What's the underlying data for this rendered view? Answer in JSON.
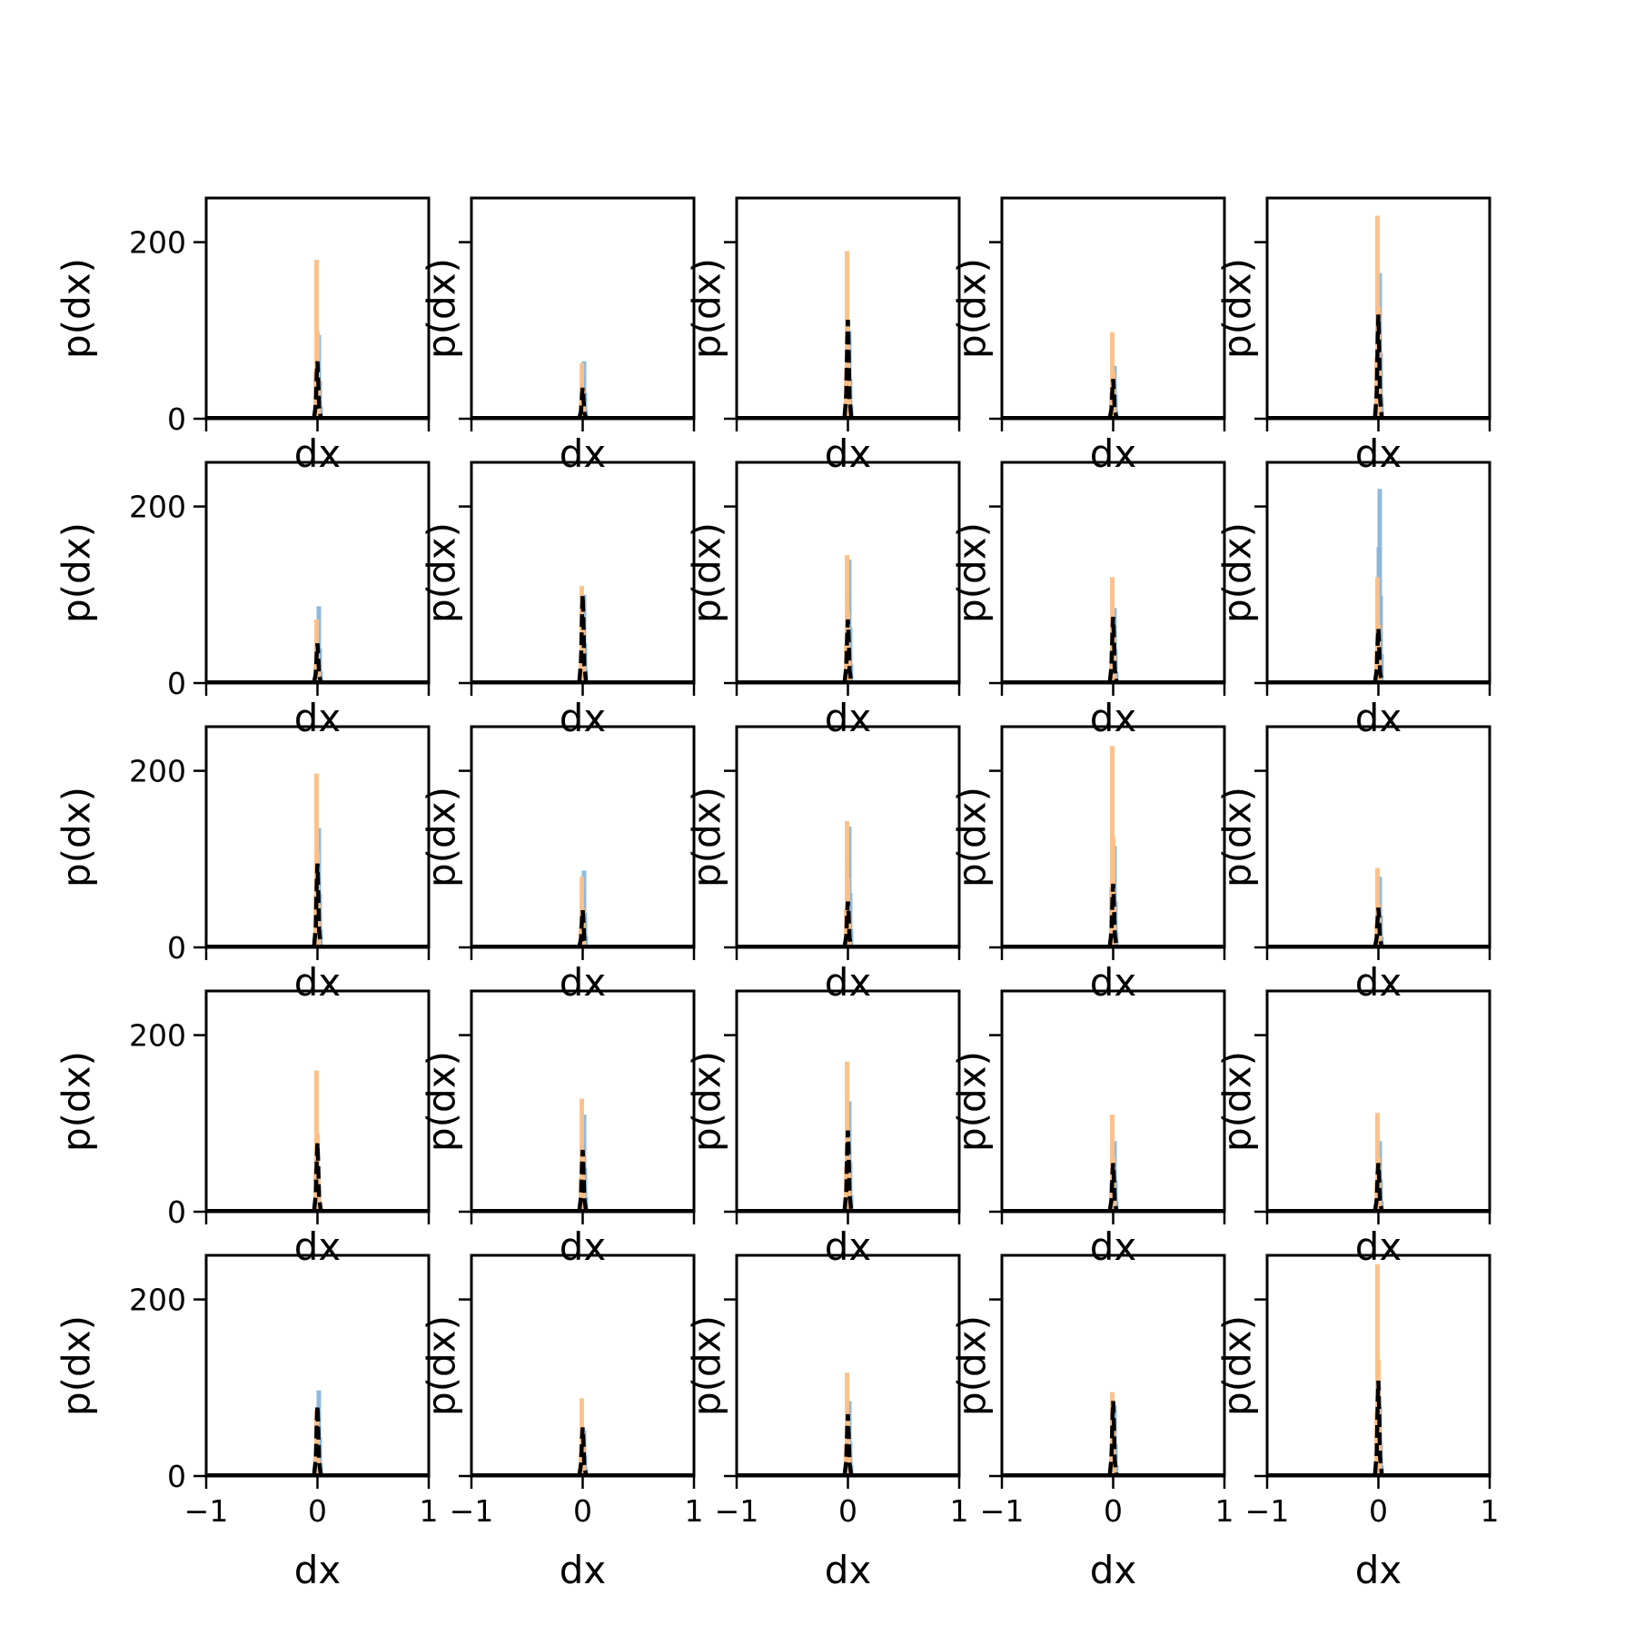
{
  "chart_data": {
    "type": "histogram-grid",
    "rows": 5,
    "cols": 5,
    "xlabel": "dx",
    "ylabel": "p(dx)",
    "xlim": [
      -1,
      1
    ],
    "ylim": [
      0,
      250
    ],
    "xticks": [
      -1,
      0,
      1
    ],
    "yticks": [
      0,
      200
    ],
    "colors": {
      "hist_a": "#8ab6d9",
      "hist_b": "#fdbf86",
      "dashed": "#000000",
      "axis": "#000000"
    },
    "panels": [
      {
        "a": 95,
        "b": 180,
        "k": 65
      },
      {
        "a": 65,
        "b": 63,
        "k": 35
      },
      {
        "a": 100,
        "b": 190,
        "k": 112
      },
      {
        "a": 60,
        "b": 98,
        "k": 45
      },
      {
        "a": 165,
        "b": 230,
        "k": 118
      },
      {
        "a": 87,
        "b": 72,
        "k": 45
      },
      {
        "a": 100,
        "b": 110,
        "k": 100
      },
      {
        "a": 140,
        "b": 145,
        "k": 72
      },
      {
        "a": 85,
        "b": 120,
        "k": 75
      },
      {
        "a": 220,
        "b": 120,
        "k": 62
      },
      {
        "a": 135,
        "b": 197,
        "k": 95
      },
      {
        "a": 87,
        "b": 80,
        "k": 42
      },
      {
        "a": 137,
        "b": 143,
        "k": 52
      },
      {
        "a": 115,
        "b": 228,
        "k": 72
      },
      {
        "a": 80,
        "b": 90,
        "k": 45
      },
      {
        "a": 25,
        "b": 160,
        "k": 78
      },
      {
        "a": 110,
        "b": 128,
        "k": 70
      },
      {
        "a": 125,
        "b": 170,
        "k": 92
      },
      {
        "a": 80,
        "b": 110,
        "k": 55
      },
      {
        "a": 80,
        "b": 112,
        "k": 55
      },
      {
        "a": 97,
        "b": 75,
        "k": 80
      },
      {
        "a": 52,
        "b": 88,
        "k": 55
      },
      {
        "a": 85,
        "b": 117,
        "k": 70
      },
      {
        "a": 80,
        "b": 95,
        "k": 85
      },
      {
        "a": 78,
        "b": 240,
        "k": 108
      }
    ]
  }
}
